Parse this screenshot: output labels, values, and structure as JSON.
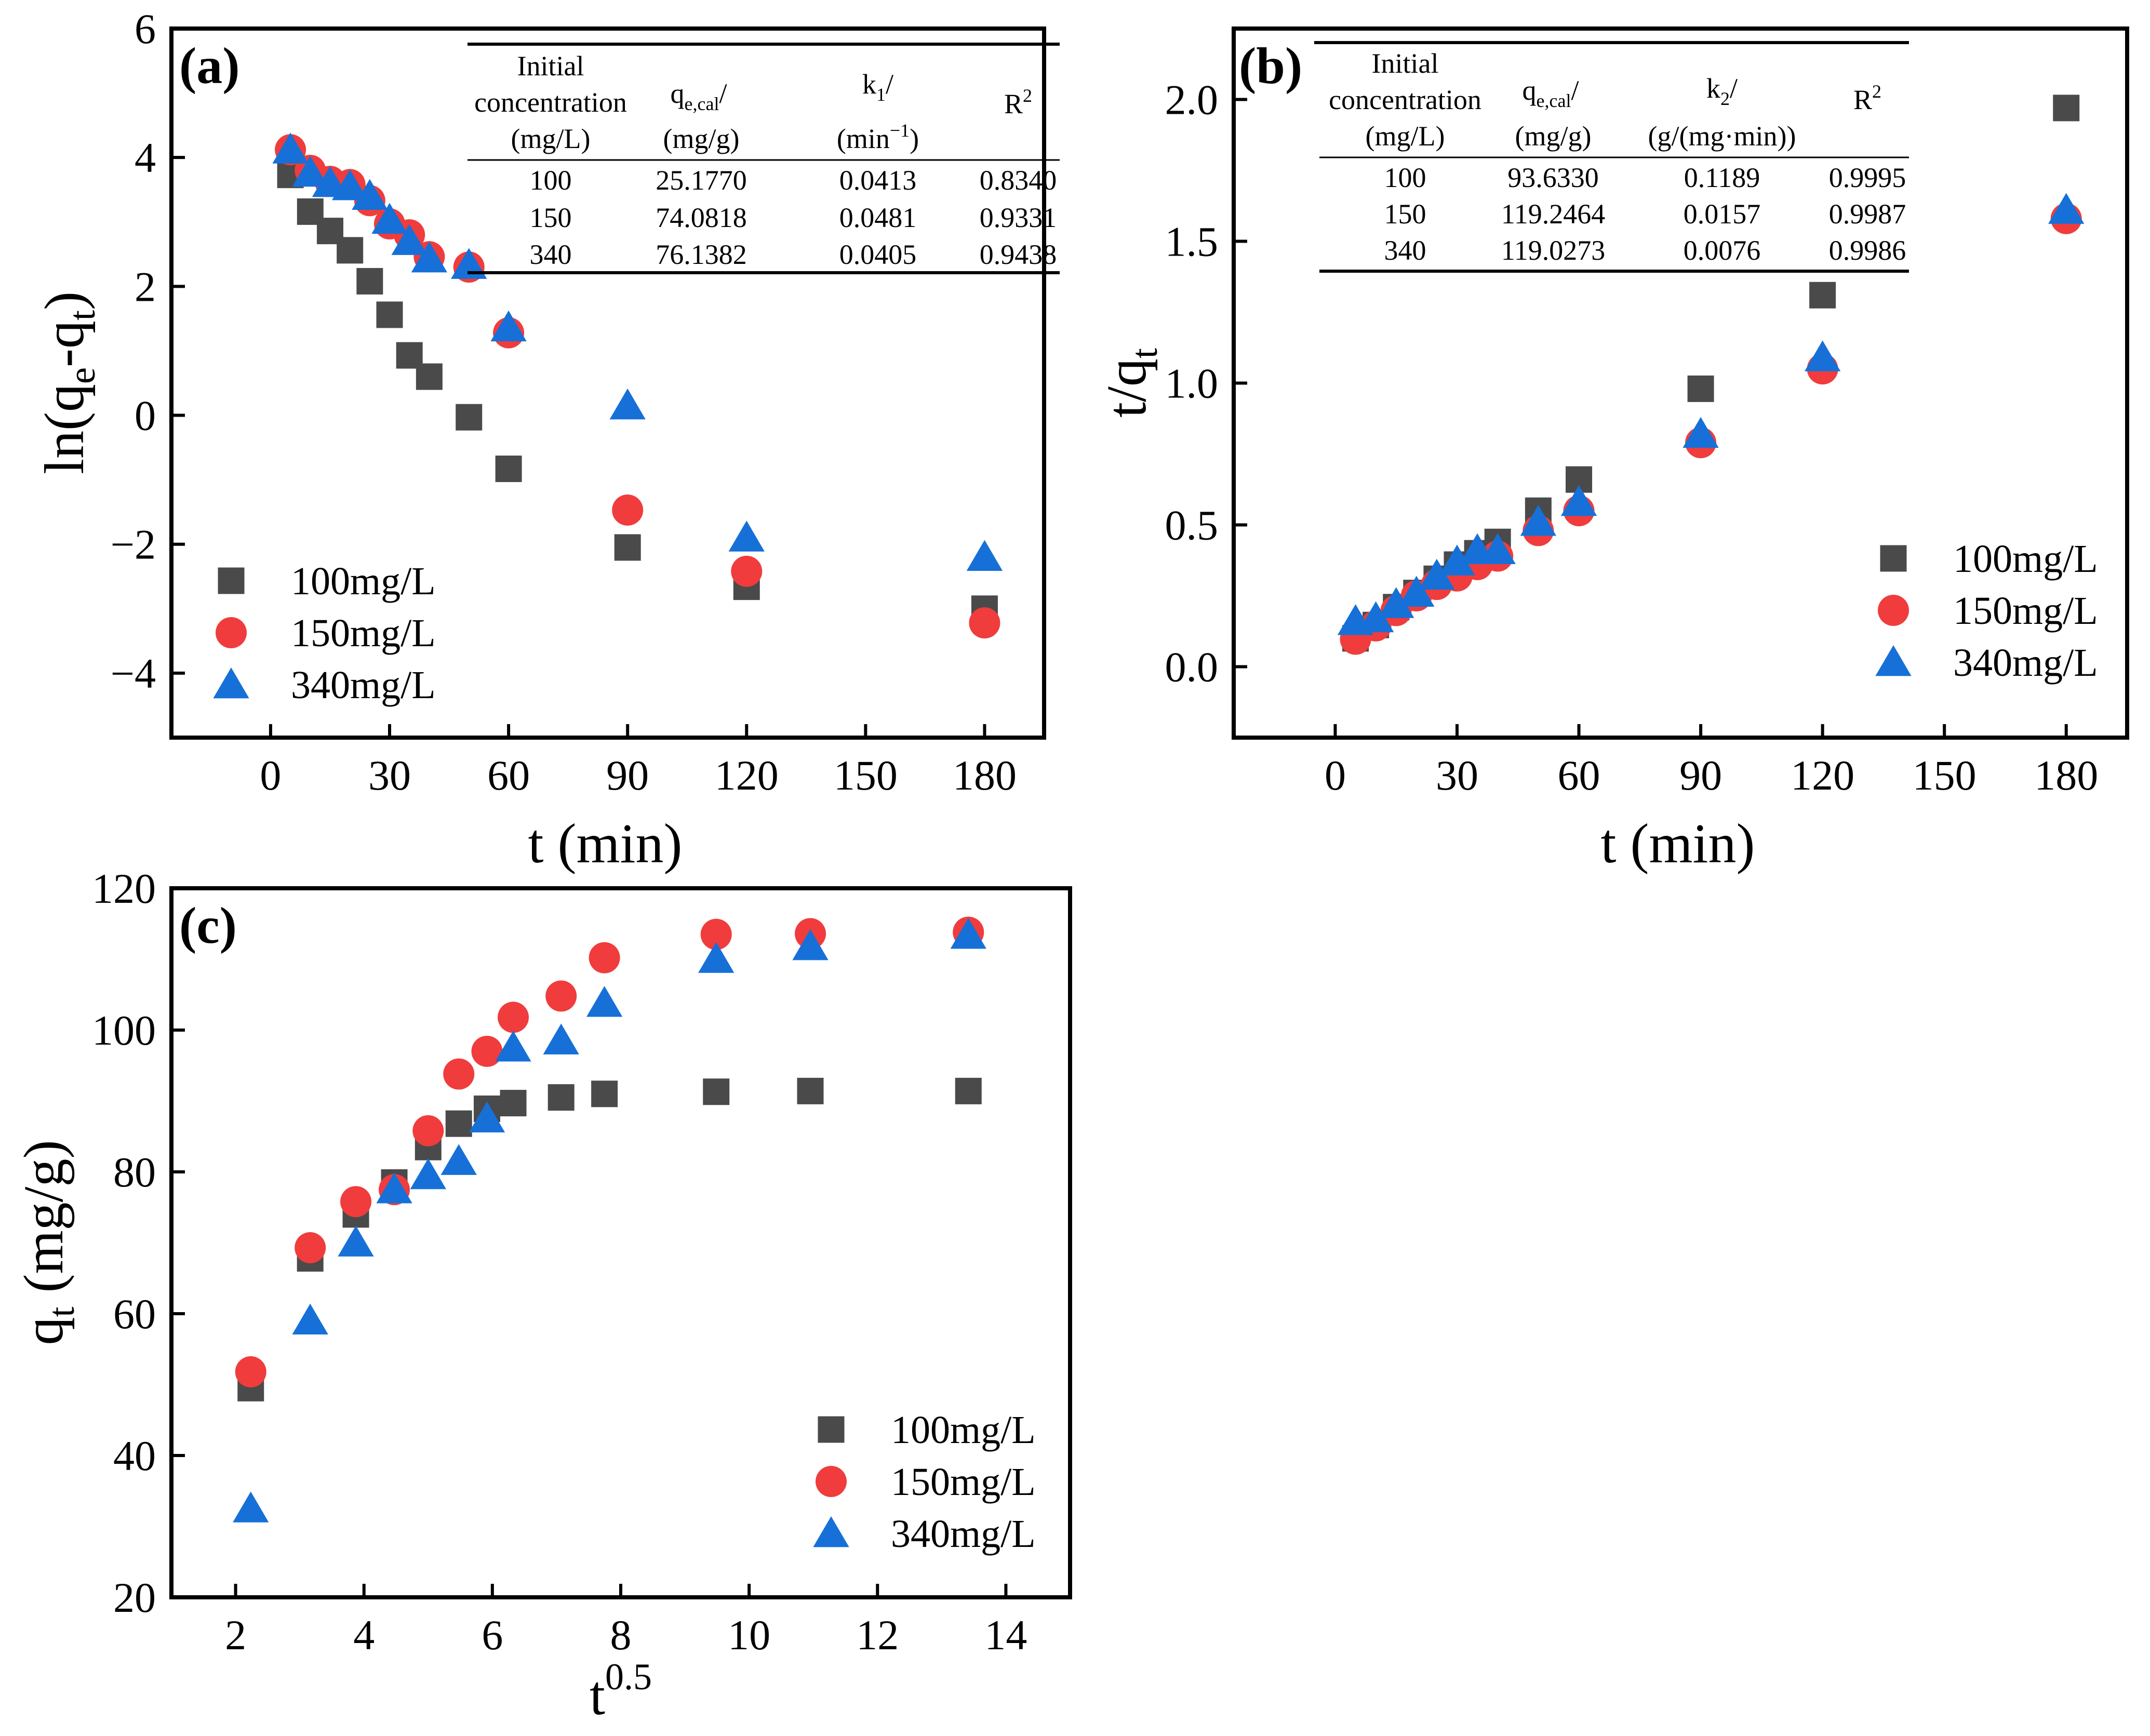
{
  "colors": {
    "series_100": "#4a4a4a",
    "series_150": "#f03c3c",
    "series_340": "#1670d8"
  },
  "chart_data": [
    {
      "panel_label": "(a)",
      "type": "scatter",
      "xlabel": "t (min)",
      "ylabel_parts": {
        "main": "ln(q",
        "sub1": "e",
        "mid": "-q",
        "sub2": "t",
        "end": ")"
      },
      "xlim": [
        -25,
        195
      ],
      "ylim": [
        -5,
        6
      ],
      "xticks": [
        0,
        30,
        60,
        90,
        120,
        150,
        180
      ],
      "xtick_labels": [
        "0",
        "30",
        "60",
        "90",
        "120",
        "150",
        "180"
      ],
      "yticks": [
        -4,
        -2,
        0,
        2,
        4,
        6
      ],
      "ytick_labels": [
        "−4",
        "−2",
        "0",
        "2",
        "4",
        "6"
      ],
      "legend_position": "bottom-left",
      "series": [
        {
          "name": "100mg/L",
          "marker": "square",
          "x": [
            5,
            10,
            15,
            20,
            25,
            30,
            35,
            40,
            50,
            60,
            90,
            120,
            180
          ],
          "y": [
            3.73,
            3.16,
            2.86,
            2.56,
            2.08,
            1.56,
            0.93,
            0.6,
            -0.03,
            -0.83,
            -2.05,
            -2.66,
            -3.0
          ]
        },
        {
          "name": "150mg/L",
          "marker": "circle",
          "x": [
            5,
            10,
            15,
            20,
            25,
            30,
            35,
            40,
            50,
            60,
            90,
            120,
            180
          ],
          "y": [
            4.12,
            3.8,
            3.63,
            3.58,
            3.33,
            2.97,
            2.8,
            2.46,
            2.3,
            1.28,
            -1.47,
            -2.42,
            -3.22
          ]
        },
        {
          "name": "340mg/L",
          "marker": "triangle",
          "x": [
            5,
            10,
            15,
            20,
            25,
            30,
            35,
            40,
            50,
            60,
            90,
            120,
            180
          ],
          "y": [
            4.12,
            3.76,
            3.6,
            3.55,
            3.4,
            3.03,
            2.7,
            2.43,
            2.33,
            1.36,
            0.15,
            -1.9,
            -2.2
          ]
        }
      ],
      "table": {
        "headers": [
          "Initial",
          "concentration",
          "(mg/L)",
          "q",
          "e,cal",
          "/",
          "(mg/g)",
          "k",
          "1",
          "/",
          "(min",
          "−1",
          ")",
          "R",
          "2"
        ],
        "rows": [
          [
            "100",
            "25.1770",
            "0.0413",
            "0.8340"
          ],
          [
            "150",
            "74.0818",
            "0.0481",
            "0.9331"
          ],
          [
            "340",
            "76.1382",
            "0.0405",
            "0.9438"
          ]
        ]
      }
    },
    {
      "panel_label": "(b)",
      "type": "scatter",
      "xlabel": "t (min)",
      "ylabel_parts": {
        "main": "t/q",
        "sub": "t"
      },
      "xlim": [
        -25,
        195
      ],
      "ylim": [
        -0.25,
        2.25
      ],
      "xticks": [
        0,
        30,
        60,
        90,
        120,
        150,
        180
      ],
      "xtick_labels": [
        "0",
        "30",
        "60",
        "90",
        "120",
        "150",
        "180"
      ],
      "yticks": [
        0,
        0.5,
        1.0,
        1.5,
        2.0
      ],
      "ytick_labels": [
        "0.0",
        "0.5",
        "1.0",
        "1.5",
        "2.0"
      ],
      "legend_position": "bottom-right",
      "series": [
        {
          "name": "100mg/L",
          "marker": "square",
          "x": [
            5,
            10,
            15,
            20,
            25,
            30,
            35,
            40,
            50,
            60,
            90,
            120,
            180
          ],
          "y": [
            0.1,
            0.147,
            0.21,
            0.26,
            0.31,
            0.36,
            0.4,
            0.44,
            0.55,
            0.66,
            0.98,
            1.31,
            1.97
          ]
        },
        {
          "name": "150mg/L",
          "marker": "circle",
          "x": [
            5,
            10,
            15,
            20,
            25,
            30,
            35,
            40,
            50,
            60,
            90,
            120,
            180
          ],
          "y": [
            0.097,
            0.144,
            0.198,
            0.25,
            0.29,
            0.32,
            0.36,
            0.39,
            0.48,
            0.55,
            0.79,
            1.05,
            1.58
          ]
        },
        {
          "name": "340mg/L",
          "marker": "triangle",
          "x": [
            5,
            10,
            15,
            20,
            25,
            30,
            35,
            40,
            50,
            60,
            90,
            120,
            180
          ],
          "y": [
            0.16,
            0.17,
            0.22,
            0.26,
            0.32,
            0.37,
            0.41,
            0.41,
            0.51,
            0.58,
            0.82,
            1.09,
            1.61
          ]
        }
      ],
      "table": {
        "headers": [
          "Initial",
          "concentration",
          "(mg/L)",
          "q",
          "e,cal",
          "/",
          "(mg/g)",
          "k",
          "2",
          "/",
          "(g/(mg·min))",
          "R",
          "2"
        ],
        "rows": [
          [
            "100",
            "93.6330",
            "0.1189",
            "0.9995"
          ],
          [
            "150",
            "119.2464",
            "0.0157",
            "0.9987"
          ],
          [
            "340",
            "119.0273",
            "0.0076",
            "0.9986"
          ]
        ]
      }
    },
    {
      "panel_label": "(c)",
      "type": "scatter",
      "xlabel_parts": {
        "main": "t",
        "sup": "0.5"
      },
      "ylabel_parts": {
        "main": "q",
        "sub": "t",
        "end": " (mg/g)"
      },
      "xlim": [
        1,
        15
      ],
      "ylim": [
        20,
        120
      ],
      "xticks": [
        2,
        4,
        6,
        8,
        10,
        12,
        14
      ],
      "xtick_labels": [
        "2",
        "4",
        "6",
        "8",
        "10",
        "12",
        "14"
      ],
      "yticks": [
        20,
        40,
        60,
        80,
        100,
        120
      ],
      "ytick_labels": [
        "20",
        "40",
        "60",
        "80",
        "100",
        "120"
      ],
      "legend_position": "bottom-right",
      "series": [
        {
          "name": "100mg/L",
          "marker": "square",
          "x": [
            2.236,
            3.162,
            3.873,
            4.472,
            5.0,
            5.477,
            5.916,
            6.325,
            7.071,
            7.746,
            9.487,
            10.954,
            13.416
          ],
          "y": [
            49.5,
            67.8,
            74.0,
            78.5,
            83.5,
            86.8,
            88.9,
            89.7,
            90.5,
            91.0,
            91.3,
            91.4,
            91.4
          ]
        },
        {
          "name": "150mg/L",
          "marker": "circle",
          "x": [
            2.236,
            3.162,
            3.873,
            4.472,
            5.0,
            5.477,
            5.916,
            6.325,
            7.071,
            7.746,
            9.487,
            10.954,
            13.416
          ],
          "y": [
            51.8,
            69.3,
            75.8,
            77.5,
            85.8,
            93.8,
            97.0,
            101.8,
            104.8,
            110.2,
            113.5,
            113.6,
            113.8
          ]
        },
        {
          "name": "340mg/L",
          "marker": "triangle",
          "x": [
            2.236,
            3.162,
            3.873,
            4.472,
            5.0,
            5.477,
            5.916,
            6.325,
            7.071,
            7.746,
            9.487,
            10.954,
            13.416
          ],
          "y": [
            32.5,
            59.0,
            70.0,
            77.5,
            79.5,
            81.5,
            87.5,
            97.5,
            98.5,
            103.8,
            110.0,
            111.8,
            113.4
          ]
        }
      ]
    }
  ]
}
